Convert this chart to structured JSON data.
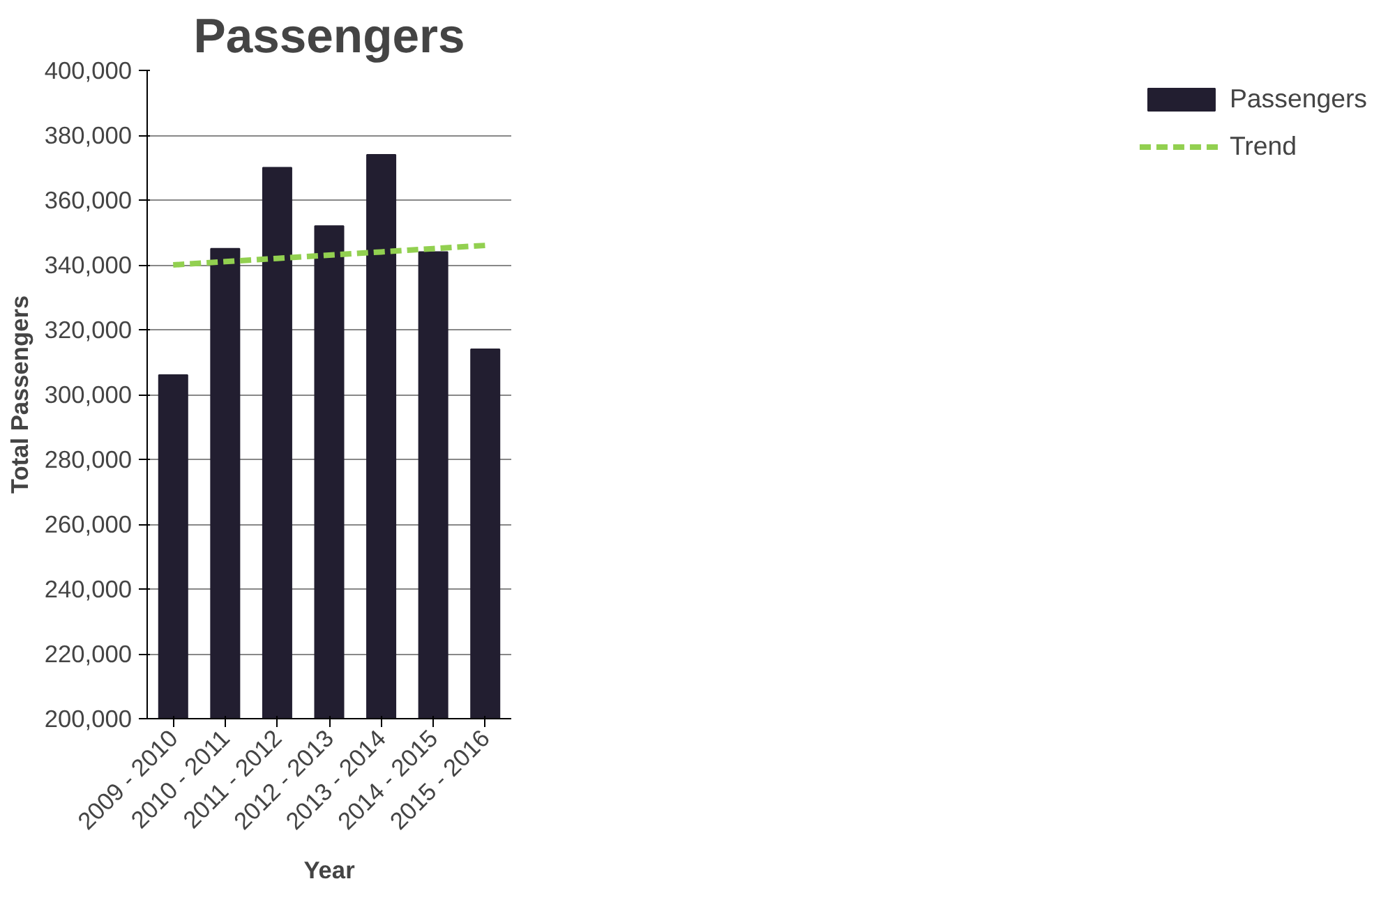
{
  "chart_data": {
    "type": "bar",
    "title": "Passengers",
    "xlabel": "Year",
    "ylabel": "Total Passengers",
    "categories": [
      "2009 - 2010",
      "2010 - 2011",
      "2011 - 2012",
      "2012 - 2013",
      "2013 - 2014",
      "2014 - 2015",
      "2015 - 2016"
    ],
    "series": [
      {
        "name": "Passengers",
        "color": "#221e30",
        "values": [
          306000,
          345000,
          370000,
          352000,
          374000,
          344000,
          314000
        ]
      },
      {
        "name": "Trend",
        "type": "line",
        "color": "#92d050",
        "line_style": "dashed",
        "values": [
          340000,
          341000,
          342000,
          343000,
          344000,
          345000,
          346000
        ]
      }
    ],
    "ylim": [
      200000,
      400000
    ],
    "yticks": [
      {
        "value": 200000,
        "label": "200,000"
      },
      {
        "value": 220000,
        "label": "220,000"
      },
      {
        "value": 240000,
        "label": "240,000"
      },
      {
        "value": 260000,
        "label": "260,000"
      },
      {
        "value": 280000,
        "label": "280,000"
      },
      {
        "value": 300000,
        "label": "300,000"
      },
      {
        "value": 320000,
        "label": "320,000"
      },
      {
        "value": 340000,
        "label": "340,000"
      },
      {
        "value": 360000,
        "label": "360,000"
      },
      {
        "value": 380000,
        "label": "380,000"
      },
      {
        "value": 400000,
        "label": "400,000"
      }
    ],
    "grid": "y",
    "legend": "right"
  }
}
